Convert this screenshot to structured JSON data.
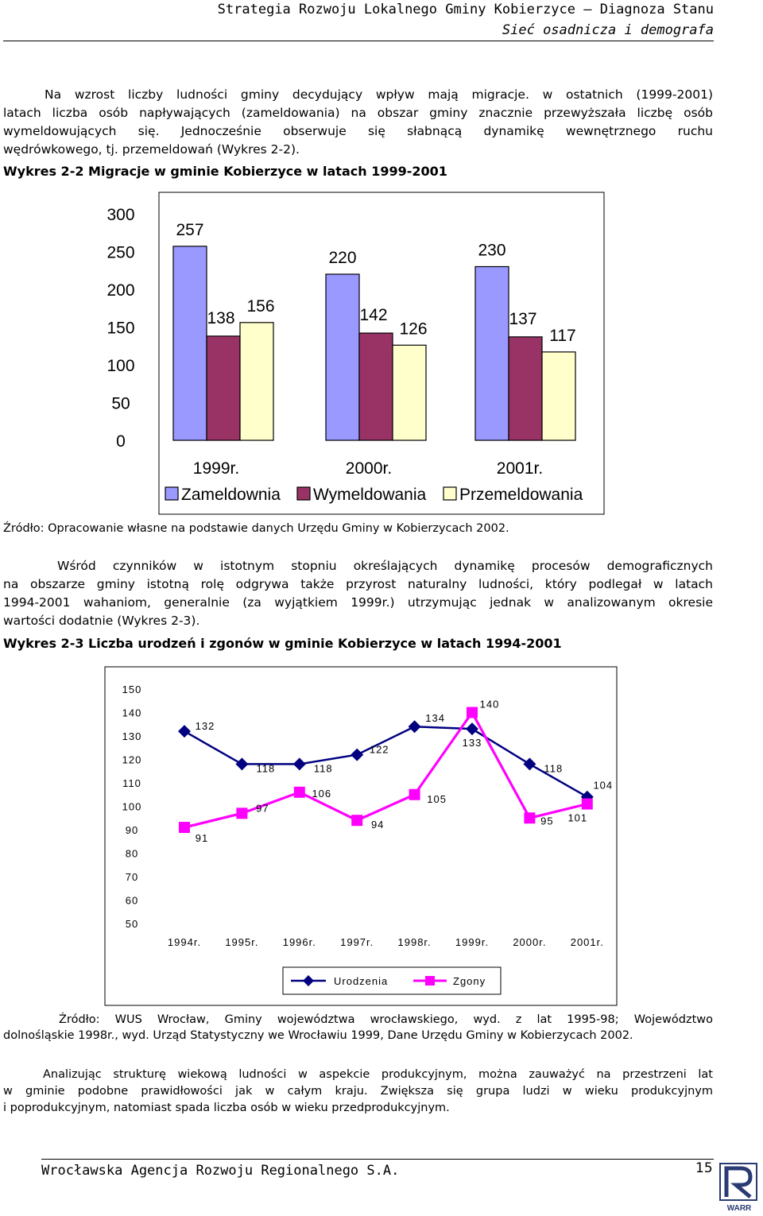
{
  "header": {
    "line1": "Strategia Rozwoju Lokalnego Gminy Kobierzyce – Diagnoza Stanu",
    "line2": "Sieć osadnicza i demografa"
  },
  "para1": [
    "Na wzrost liczby ludności gminy decydujący wpływ mają migracje. w ostatnich (1999-2001)",
    "latach liczba osób napływających (zameldowania) na obszar gminy znacznie przewyższała liczbę osób",
    "wymeldowujących się. Jednocześnie obserwuje się słabnącą dynamikę wewnętrznego ruchu",
    "wędrówkowego, tj. przemeldowań (Wykres 2-2)."
  ],
  "chart1_caption": "Wykres 2-2 Migracje w gminie Kobierzyce w latach 1999-2001",
  "chart1_source": "Źródło: Opracowanie własne na podstawie danych Urzędu Gminy w Kobierzycach 2002.",
  "para2": [
    "Wśród czynników w istotnym stopniu określających dynamikę procesów demograficznych",
    "na obszarze gminy istotną rolę odgrywa także przyrost naturalny ludności, który podlegał w latach",
    "1994-2001 wahaniom, generalnie (za wyjątkiem 1999r.) utrzymując jednak w analizowanym okresie",
    "wartości dodatnie (Wykres 2-3)."
  ],
  "chart2_caption": "Wykres 2-3 Liczba urodzeń i zgonów w gminie Kobierzyce w latach 1994-2001",
  "chart2_source": [
    "Źródło: WUS Wrocław, Gminy województwa wrocławskiego, wyd. z lat 1995-98; Województwo",
    "dolnośląskie 1998r., wyd. Urząd Statystyczny we Wrocławiu 1999, Dane Urzędu Gminy w Kobierzycach 2002."
  ],
  "para3": [
    "Analizując strukturę wiekową ludności w aspekcie produkcyjnym, można zauważyć na przestrzeni lat",
    "w gminie podobne prawidłowości jak w całym kraju. Zwiększa się grupa ludzi w wieku produkcyjnym",
    "i poprodukcyjnym, natomiast spada liczba osób w wieku przedprodukcyjnym."
  ],
  "footer": {
    "org": "Wrocławska Agencja Rozwoju Regionalnego S.A.",
    "page": "15",
    "logo_text": "WARR"
  },
  "chart_data": [
    {
      "type": "bar",
      "categories": [
        "1999r.",
        "2000r.",
        "2001r."
      ],
      "series": [
        {
          "name": "Zameldownia",
          "values": [
            257,
            220,
            230
          ],
          "color": "#9999ff"
        },
        {
          "name": "Wymeldowania",
          "values": [
            138,
            142,
            137
          ],
          "color": "#993366"
        },
        {
          "name": "Przemeldowania",
          "values": [
            156,
            126,
            117
          ],
          "color": "#ffffcc"
        }
      ],
      "yticks": [
        0,
        50,
        100,
        150,
        200,
        250,
        300
      ],
      "ylim": [
        0,
        300
      ],
      "legend": "bottom"
    },
    {
      "type": "line",
      "categories": [
        "1994r.",
        "1995r.",
        "1996r.",
        "1997r.",
        "1998r.",
        "1999r.",
        "2000r.",
        "2001r."
      ],
      "series": [
        {
          "name": "Urodzenia",
          "values": [
            132,
            118,
            118,
            122,
            134,
            133,
            118,
            104
          ],
          "color": "#000080",
          "marker": "diamond"
        },
        {
          "name": "Zgony",
          "values": [
            91,
            97,
            106,
            94,
            105,
            140,
            95,
            101
          ],
          "color": "#ff00ff",
          "marker": "square"
        }
      ],
      "yticks": [
        50,
        60,
        70,
        80,
        90,
        100,
        110,
        120,
        130,
        140,
        150
      ],
      "ylim": [
        50,
        150
      ],
      "legend": "bottom"
    }
  ]
}
